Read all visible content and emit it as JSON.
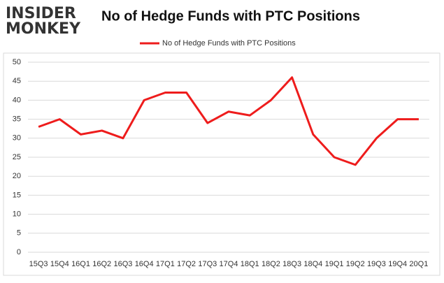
{
  "logo": {
    "line1": "INSIDER",
    "line2": "MONKEY"
  },
  "chart_data": {
    "type": "line",
    "title": "No of Hedge Funds with PTC Positions",
    "categories": [
      "15Q3",
      "15Q4",
      "16Q1",
      "16Q2",
      "16Q3",
      "16Q4",
      "17Q1",
      "17Q2",
      "17Q3",
      "17Q4",
      "18Q1",
      "18Q2",
      "18Q3",
      "18Q4",
      "19Q1",
      "19Q2",
      "19Q3",
      "19Q4",
      "20Q1"
    ],
    "series": [
      {
        "name": "No of Hedge Funds with PTC Positions",
        "color": "#ee1c1c",
        "values": [
          33,
          35,
          31,
          32,
          30,
          40,
          42,
          42,
          34,
          37,
          36,
          40,
          46,
          31,
          25,
          23,
          30,
          35,
          35
        ]
      }
    ],
    "ylim": [
      0,
      50
    ],
    "yticks": [
      0,
      5,
      10,
      15,
      20,
      25,
      30,
      35,
      40,
      45,
      50
    ],
    "grid": true,
    "legend": "top"
  }
}
